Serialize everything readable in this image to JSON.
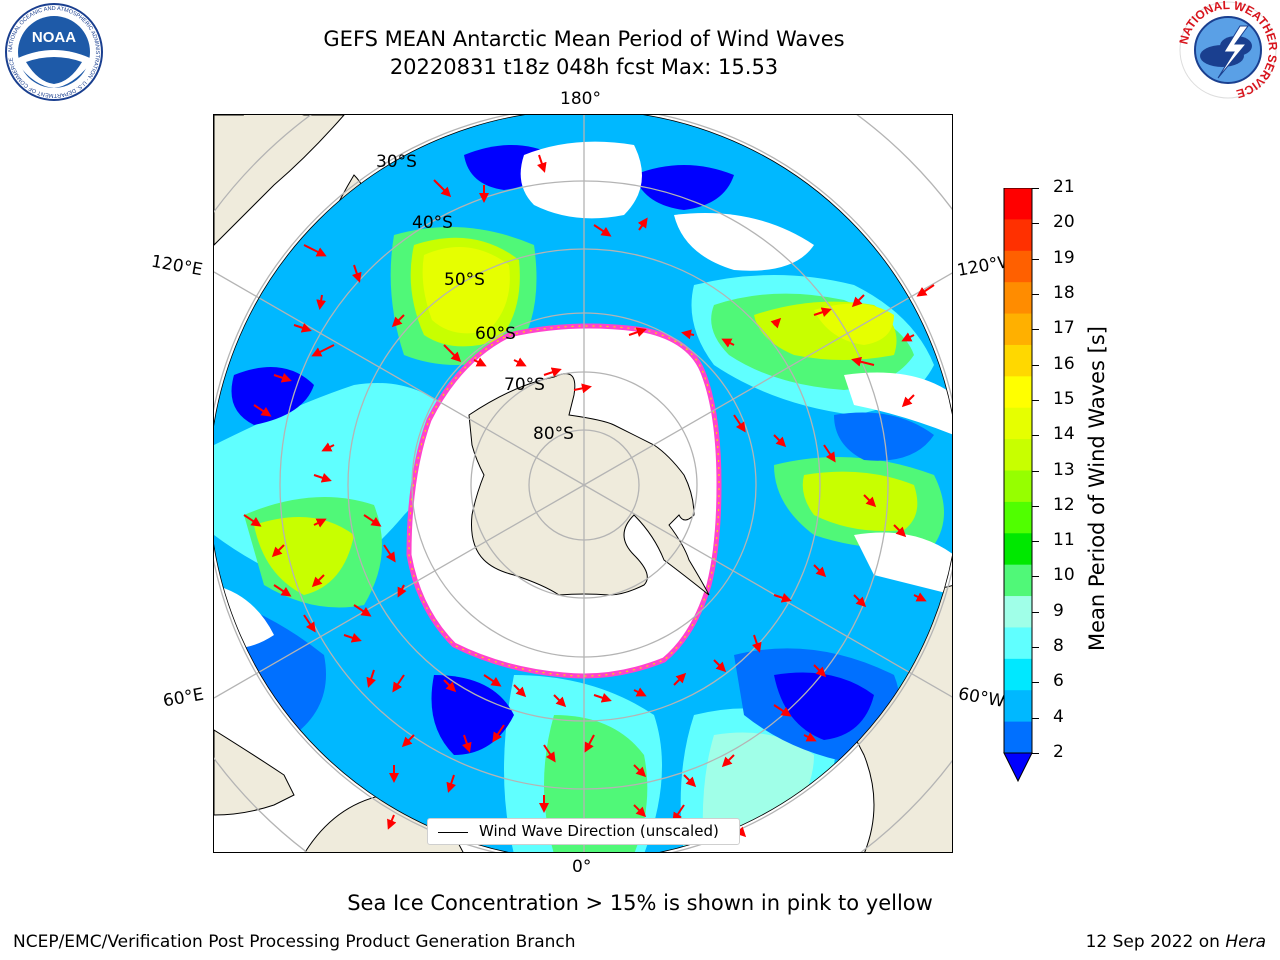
{
  "title_line1": "GEFS MEAN Antarctic Mean Period of Wind Waves",
  "title_line2": "20220831 t18z 048h fcst   Max: 15.53",
  "longitude_labels": {
    "top": "180°",
    "bottom": "0°",
    "upper_left": "120°E",
    "upper_right": "120°W",
    "lower_left": "60°E",
    "lower_right": "60°W"
  },
  "latitude_labels": [
    "30°S",
    "40°S",
    "50°S",
    "60°S",
    "70°S",
    "80°S"
  ],
  "legend_label": "Wind Wave Direction (unscaled)",
  "colorbar": {
    "label": "Mean Period of Wind Waves [s]",
    "ticks": [
      "21",
      "20",
      "19",
      "18",
      "17",
      "16",
      "15",
      "14",
      "13",
      "12",
      "11",
      "10",
      "9",
      "8",
      "6",
      "4",
      "2"
    ],
    "colors_top_to_bottom": [
      "#ff0000",
      "#ff3000",
      "#ff6000",
      "#ff8c00",
      "#ffb000",
      "#ffd800",
      "#ffff00",
      "#e6ff00",
      "#c8ff00",
      "#96ff00",
      "#50ff00",
      "#00e800",
      "#50f878",
      "#a0ffe8",
      "#60ffff",
      "#00e8ff",
      "#00b8ff",
      "#0070ff"
    ],
    "extend_color": "#0000ff"
  },
  "map_colors": {
    "land": "#efebdc",
    "ocean_open": "#ffffff",
    "grid": "#b4b4b4",
    "arrow": "#ff0000",
    "ice_edge": "#ff44cc"
  },
  "note": "Sea Ice Concentration > 15% is shown in pink to yellow",
  "footer_left": "NCEP/EMC/Verification Post Processing Product Generation Branch",
  "footer_right_date": "12 Sep 2022 on ",
  "footer_right_host": "Hera",
  "logos": {
    "left_text": "NOAA",
    "left_ring": "NATIONAL OCEANIC AND ATMOSPHERIC ADMINISTRATION · U.S. DEPARTMENT OF COMMERCE",
    "right_ring": "NATIONAL WEATHER SERVICE"
  }
}
